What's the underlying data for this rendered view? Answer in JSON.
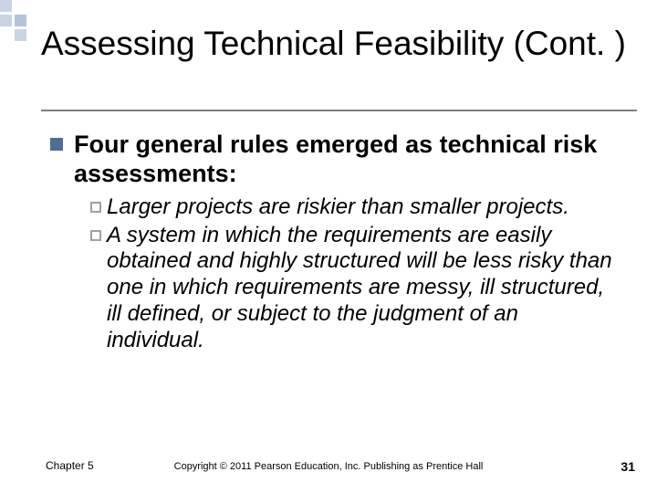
{
  "decor": {
    "squares": [
      {
        "bg": "#c8d4e4"
      },
      {
        "bg": "transparent"
      },
      {
        "bg": "transparent"
      },
      {
        "bg": "#c8d4e4"
      },
      {
        "bg": "#b2c4db"
      },
      {
        "bg": "transparent"
      },
      {
        "bg": "transparent"
      },
      {
        "bg": "#c8d4e4"
      },
      {
        "bg": "transparent"
      }
    ]
  },
  "title": "Assessing Technical Feasibility (Cont. )",
  "colors": {
    "bullet_primary": "#4e6e97",
    "bullet_open_border": "#a0a0a0",
    "underline": "#808080",
    "text": "#000000",
    "background": "#ffffff"
  },
  "typography": {
    "title_fontsize": 37,
    "level1_fontsize": 27,
    "level1_weight": 700,
    "level2_fontsize": 24,
    "level2_style": "italic",
    "footer_small": 12,
    "footer_center": 11,
    "footer_pagenum": 14
  },
  "content": {
    "level1_text": "Four general rules emerged as technical risk assessments:",
    "subitems": [
      {
        "text": "Larger projects are riskier than smaller projects."
      },
      {
        "text": "A system in which the requirements are easily obtained and highly structured will be less risky than one in which requirements are messy, ill structured, ill defined, or subject to the judgment of an individual."
      }
    ]
  },
  "footer": {
    "left": "Chapter 5",
    "center": "Copyright © 2011 Pearson Education, Inc. Publishing as Prentice Hall",
    "pagenum": "31"
  }
}
